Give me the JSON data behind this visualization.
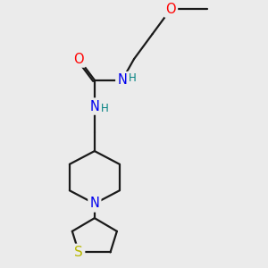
{
  "background_color": "#ebebeb",
  "bond_color": "#1a1a1a",
  "atom_colors": {
    "O": "#ff0000",
    "N": "#0000ee",
    "S": "#b8b800",
    "H_label": "#008080",
    "C": "#1a1a1a"
  },
  "line_width": 1.6,
  "font_size_atom": 10.5,
  "font_size_H": 8.5
}
